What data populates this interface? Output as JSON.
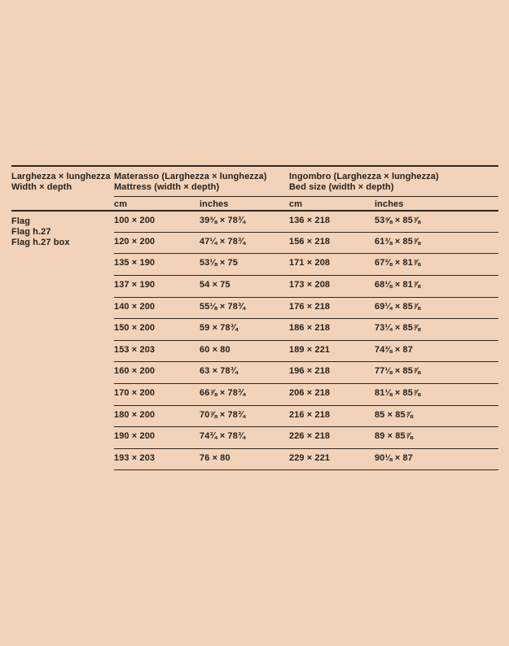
{
  "page": {
    "background_color": "#F2D3BA",
    "rule_color": "#30261E",
    "text_color": "#28211B"
  },
  "table": {
    "col1_header": {
      "line1": "Larghezza × lunghezza",
      "line2": "Width × depth"
    },
    "col2_header": {
      "line1": "Materasso (Larghezza × lunghezza)",
      "line2": "Mattress (width × depth)"
    },
    "col3_header": {
      "line1": "Ingombro (Larghezza × lunghezza)",
      "line2": "Bed size (width × depth)"
    },
    "unit_headers": {
      "cm": "cm",
      "inches": "inches"
    },
    "product_labels": {
      "l1": "Flag",
      "l2": "Flag h.27",
      "l3": "Flag h.27 box"
    },
    "rows": [
      {
        "mattress_cm": "100 × 200",
        "mattress_in": "39⅜ × 78¾",
        "bed_cm": "136 × 218",
        "bed_in": "53⅝ × 85⅞"
      },
      {
        "mattress_cm": "120 × 200",
        "mattress_in": "47¼ × 78¾",
        "bed_cm": "156 × 218",
        "bed_in": "61⅜ × 85⅞"
      },
      {
        "mattress_cm": "135 × 190",
        "mattress_in": "53⅛ × 75",
        "bed_cm": "171 × 208",
        "bed_in": "67⅜ × 81⅞"
      },
      {
        "mattress_cm": "137 × 190",
        "mattress_in": "54 × 75",
        "bed_cm": "173 × 208",
        "bed_in": "68⅛ × 81⅞"
      },
      {
        "mattress_cm": "140 × 200",
        "mattress_in": "55⅛ × 78¾",
        "bed_cm": "176 × 218",
        "bed_in": "69¼ × 85⅞"
      },
      {
        "mattress_cm": "150 × 200",
        "mattress_in": "59 × 78¾",
        "bed_cm": "186 × 218",
        "bed_in": "73¼ × 85⅞"
      },
      {
        "mattress_cm": "153 × 203",
        "mattress_in": "60 × 80",
        "bed_cm": "189 × 221",
        "bed_in": "74⅜ × 87"
      },
      {
        "mattress_cm": "160 × 200",
        "mattress_in": "63 × 78¾",
        "bed_cm": "196 × 218",
        "bed_in": "77⅛ × 85⅞"
      },
      {
        "mattress_cm": "170 × 200",
        "mattress_in": "66⅞ × 78¾",
        "bed_cm": "206 × 218",
        "bed_in": "81⅛ × 85⅞"
      },
      {
        "mattress_cm": "180 × 200",
        "mattress_in": "70⅞ × 78¾",
        "bed_cm": "216 × 218",
        "bed_in": "85 × 85⅞"
      },
      {
        "mattress_cm": "190 × 200",
        "mattress_in": "74¾ × 78¾",
        "bed_cm": "226 × 218",
        "bed_in": "89 × 85⅞"
      },
      {
        "mattress_cm": "193 × 203",
        "mattress_in": "76 × 80",
        "bed_cm": "229 × 221",
        "bed_in": "90⅛ × 87"
      }
    ]
  }
}
